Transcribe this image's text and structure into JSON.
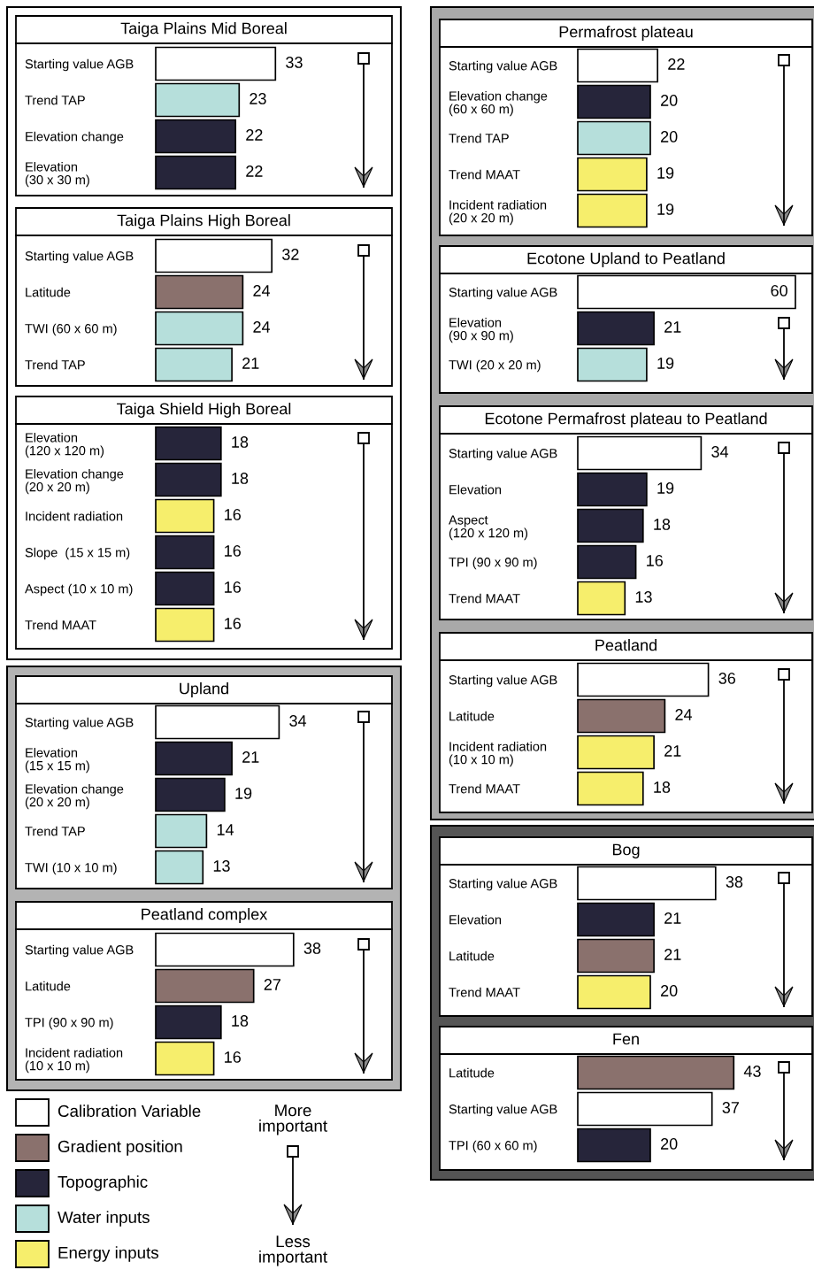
{
  "chart_data": [
    {
      "type": "bar",
      "orientation": "horizontal",
      "title": "Taiga Plains Mid Boreal",
      "categories": [
        "Starting value AGB",
        "Trend TAP",
        "Elevation change",
        "Elevation\n(30 x 30 m)"
      ],
      "values": [
        33,
        23,
        22,
        22
      ],
      "colors": [
        "#ffffff",
        "#b6dfdb",
        "#26253a",
        "#26253a"
      ],
      "data_labels": true,
      "tick_labels": "y"
    },
    {
      "type": "bar",
      "orientation": "horizontal",
      "title": "Taiga Plains High Boreal",
      "categories": [
        "Starting value AGB",
        "Latitude",
        "TWI (60 x 60 m)",
        "Trend TAP"
      ],
      "values": [
        32,
        24,
        24,
        21
      ],
      "colors": [
        "#ffffff",
        "#8a716d",
        "#b6dfdb",
        "#b6dfdb"
      ],
      "data_labels": true,
      "tick_labels": "y"
    },
    {
      "type": "bar",
      "orientation": "horizontal",
      "title": "Taiga Shield High Boreal",
      "categories": [
        "Elevation\n(120 x 120 m)",
        "Elevation change\n(20 x 20 m)",
        "Incident radiation",
        "Slope  (15 x 15 m)",
        "Aspect (10 x 10 m)",
        "Trend MAAT"
      ],
      "values": [
        18,
        18,
        16,
        16,
        16,
        16
      ],
      "colors": [
        "#26253a",
        "#26253a",
        "#f6ee6c",
        "#26253a",
        "#26253a",
        "#f6ee6c"
      ],
      "data_labels": true,
      "tick_labels": "y"
    },
    {
      "type": "bar",
      "orientation": "horizontal",
      "title": "Upland",
      "categories": [
        "Starting value AGB",
        "Elevation\n(15 x 15 m)",
        "Elevation change\n(20 x 20 m)",
        "Trend TAP",
        "TWI (10 x 10 m)"
      ],
      "values": [
        34,
        21,
        19,
        14,
        13
      ],
      "colors": [
        "#ffffff",
        "#26253a",
        "#26253a",
        "#b6dfdb",
        "#b6dfdb"
      ],
      "data_labels": true,
      "tick_labels": "y"
    },
    {
      "type": "bar",
      "orientation": "horizontal",
      "title": "Peatland complex",
      "categories": [
        "Starting value AGB",
        "Latitude",
        "TPI (90 x 90 m)",
        "Incident radiation\n(10 x 10 m)"
      ],
      "values": [
        38,
        27,
        18,
        16
      ],
      "colors": [
        "#ffffff",
        "#8a716d",
        "#26253a",
        "#f6ee6c"
      ],
      "data_labels": true,
      "tick_labels": "y"
    },
    {
      "type": "bar",
      "orientation": "horizontal",
      "title": "Permafrost plateau",
      "categories": [
        "Starting value AGB",
        "Elevation change\n(60 x 60 m)",
        "Trend TAP",
        "Trend MAAT",
        "Incident radiation\n(20 x 20 m)"
      ],
      "values": [
        22,
        20,
        20,
        19,
        19
      ],
      "colors": [
        "#ffffff",
        "#26253a",
        "#b6dfdb",
        "#f6ee6c",
        "#f6ee6c"
      ],
      "data_labels": true,
      "tick_labels": "y"
    },
    {
      "type": "bar",
      "orientation": "horizontal",
      "title": "Ecotone Upland to Peatland",
      "categories": [
        "Starting value AGB",
        "Elevation\n(90 x 90 m)",
        "TWI (20 x 20 m)"
      ],
      "values": [
        60,
        21,
        19
      ],
      "colors": [
        "#ffffff",
        "#26253a",
        "#b6dfdb"
      ],
      "data_labels": true,
      "tick_labels": "y"
    },
    {
      "type": "bar",
      "orientation": "horizontal",
      "title": "Ecotone Permafrost plateau to Peatland",
      "categories": [
        "Starting value AGB",
        "Elevation",
        "Aspect\n(120 x 120 m)",
        "TPI (90 x 90 m)",
        "Trend MAAT"
      ],
      "values": [
        34,
        19,
        18,
        16,
        13
      ],
      "colors": [
        "#ffffff",
        "#26253a",
        "#26253a",
        "#26253a",
        "#f6ee6c"
      ],
      "data_labels": true,
      "tick_labels": "y"
    },
    {
      "type": "bar",
      "orientation": "horizontal",
      "title": "Peatland",
      "categories": [
        "Starting value AGB",
        "Latitude",
        "Incident radiation\n(10 x 10 m)",
        "Trend MAAT"
      ],
      "values": [
        36,
        24,
        21,
        18
      ],
      "colors": [
        "#ffffff",
        "#8a716d",
        "#f6ee6c",
        "#f6ee6c"
      ],
      "data_labels": true,
      "tick_labels": "y"
    },
    {
      "type": "bar",
      "orientation": "horizontal",
      "title": "Bog",
      "categories": [
        "Starting value AGB",
        "Elevation",
        "Latitude",
        "Trend MAAT"
      ],
      "values": [
        38,
        21,
        21,
        20
      ],
      "colors": [
        "#ffffff",
        "#26253a",
        "#8a716d",
        "#f6ee6c"
      ],
      "data_labels": true,
      "tick_labels": "y"
    },
    {
      "type": "bar",
      "orientation": "horizontal",
      "title": "Fen",
      "categories": [
        "Latitude",
        "Starting value AGB",
        "TPI (60 x 60 m)"
      ],
      "values": [
        43,
        37,
        20
      ],
      "colors": [
        "#8a716d",
        "#ffffff",
        "#26253a"
      ],
      "data_labels": true,
      "tick_labels": "y"
    },
    {
      "type": "other",
      "categories": [
        "Calibration Variable",
        "Gradient position",
        "Topographic",
        "Water inputs",
        "Energy inputs"
      ],
      "colors": [
        "#ffffff",
        "#8a716d",
        "#26253a",
        "#b6dfdb",
        "#f6ee6c"
      ],
      "annotations": [
        "More\nimportant",
        "Less\nimportant"
      ]
    }
  ]
}
